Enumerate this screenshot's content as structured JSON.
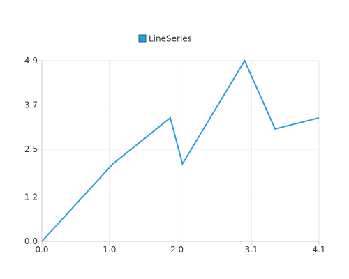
{
  "chart_data": {
    "type": "line",
    "x_ticks": [
      "0.0",
      "1.0",
      "2.0",
      "3.1",
      "4.1"
    ],
    "y_ticks": [
      "0.0",
      "1.2",
      "2.5",
      "3.7",
      "4.9"
    ],
    "xlim": [
      0,
      4.1
    ],
    "ylim": [
      0,
      4.9
    ],
    "grid": true,
    "legend_position": "top-center",
    "series": [
      {
        "name": "LineSeries",
        "color": "#2a9fd8",
        "x": [
          0.0,
          1.05,
          1.9,
          2.08,
          3.0,
          3.45,
          4.1
        ],
        "y": [
          0.0,
          2.1,
          3.35,
          2.1,
          4.9,
          3.05,
          3.35
        ]
      }
    ]
  }
}
